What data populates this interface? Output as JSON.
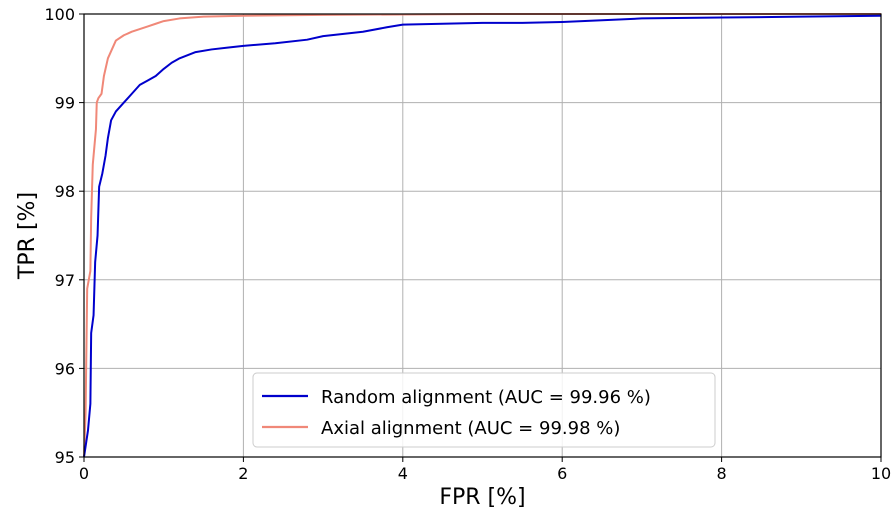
{
  "chart_data": {
    "type": "line",
    "title": "",
    "xlabel": "FPR [%]",
    "ylabel": "TPR [%]",
    "xlim": [
      0,
      10
    ],
    "ylim": [
      95,
      100
    ],
    "x_ticks": [
      "0",
      "2",
      "4",
      "6",
      "8",
      "10"
    ],
    "y_ticks": [
      "95",
      "96",
      "97",
      "98",
      "99",
      "100"
    ],
    "grid": true,
    "legend_position": "bottom-center",
    "series": [
      {
        "name": "Random alignment (AUC = 99.96 %)",
        "color": "#0000cc",
        "points": [
          [
            0.0,
            95.0
          ],
          [
            0.05,
            95.3
          ],
          [
            0.08,
            95.6
          ],
          [
            0.09,
            96.4
          ],
          [
            0.12,
            96.6
          ],
          [
            0.14,
            97.2
          ],
          [
            0.17,
            97.5
          ],
          [
            0.19,
            98.05
          ],
          [
            0.23,
            98.2
          ],
          [
            0.27,
            98.4
          ],
          [
            0.3,
            98.6
          ],
          [
            0.34,
            98.8
          ],
          [
            0.4,
            98.9
          ],
          [
            0.5,
            99.0
          ],
          [
            0.6,
            99.1
          ],
          [
            0.7,
            99.2
          ],
          [
            0.8,
            99.25
          ],
          [
            0.9,
            99.3
          ],
          [
            1.0,
            99.38
          ],
          [
            1.1,
            99.45
          ],
          [
            1.2,
            99.5
          ],
          [
            1.4,
            99.57
          ],
          [
            1.6,
            99.6
          ],
          [
            1.8,
            99.62
          ],
          [
            2.0,
            99.64
          ],
          [
            2.4,
            99.67
          ],
          [
            2.8,
            99.71
          ],
          [
            3.0,
            99.75
          ],
          [
            3.5,
            99.8
          ],
          [
            3.8,
            99.85
          ],
          [
            4.0,
            99.88
          ],
          [
            4.5,
            99.89
          ],
          [
            5.0,
            99.9
          ],
          [
            5.5,
            99.9
          ],
          [
            6.0,
            99.91
          ],
          [
            6.5,
            99.93
          ],
          [
            7.0,
            99.95
          ],
          [
            8.0,
            99.96
          ],
          [
            9.0,
            99.97
          ],
          [
            10.0,
            99.98
          ]
        ]
      },
      {
        "name": "Axial alignment (AUC = 99.98 %)",
        "color": "#f08878",
        "points": [
          [
            0.0,
            95.0
          ],
          [
            0.02,
            95.5
          ],
          [
            0.04,
            96.9
          ],
          [
            0.08,
            97.1
          ],
          [
            0.09,
            97.7
          ],
          [
            0.11,
            98.3
          ],
          [
            0.13,
            98.5
          ],
          [
            0.15,
            98.7
          ],
          [
            0.16,
            99.0
          ],
          [
            0.18,
            99.05
          ],
          [
            0.22,
            99.1
          ],
          [
            0.25,
            99.3
          ],
          [
            0.3,
            99.5
          ],
          [
            0.35,
            99.6
          ],
          [
            0.4,
            99.7
          ],
          [
            0.5,
            99.76
          ],
          [
            0.6,
            99.8
          ],
          [
            0.7,
            99.83
          ],
          [
            0.8,
            99.86
          ],
          [
            0.9,
            99.89
          ],
          [
            1.0,
            99.92
          ],
          [
            1.2,
            99.95
          ],
          [
            1.5,
            99.97
          ],
          [
            2.0,
            99.98
          ],
          [
            3.0,
            99.99
          ],
          [
            5.0,
            100.0
          ],
          [
            10.0,
            100.0
          ]
        ]
      }
    ]
  }
}
